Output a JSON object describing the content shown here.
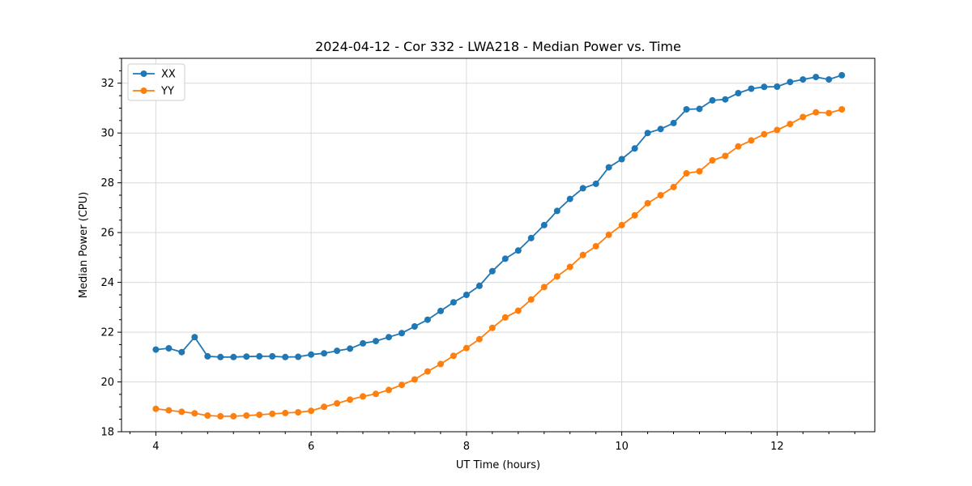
{
  "figure": {
    "background": "#ffffff"
  },
  "chart_data": {
    "type": "line",
    "title": "2024-04-12 - Cor 332 - LWA218 - Median Power vs. Time",
    "xlabel": "UT Time (hours)",
    "ylabel": "Median Power (CPU)",
    "xlim": [
      3.558,
      13.258
    ],
    "ylim": [
      18,
      33
    ],
    "x_ticks": [
      4,
      6,
      8,
      10,
      12
    ],
    "y_ticks": [
      18,
      20,
      22,
      24,
      26,
      28,
      30,
      32
    ],
    "x_minor_step": 0.33333,
    "y_minor_step": 0.5,
    "grid": "major",
    "grid_color": "#d9d9d9",
    "legend_position": "upper-left",
    "x": [
      4.0,
      4.167,
      4.333,
      4.5,
      4.667,
      4.833,
      5.0,
      5.167,
      5.333,
      5.5,
      5.667,
      5.833,
      6.0,
      6.167,
      6.333,
      6.5,
      6.667,
      6.833,
      7.0,
      7.167,
      7.333,
      7.5,
      7.667,
      7.833,
      8.0,
      8.167,
      8.333,
      8.5,
      8.667,
      8.833,
      9.0,
      9.167,
      9.333,
      9.5,
      9.667,
      9.833,
      10.0,
      10.167,
      10.333,
      10.5,
      10.667,
      10.833,
      11.0,
      11.167,
      11.333,
      11.5,
      11.667,
      11.833,
      12.0,
      12.167,
      12.333,
      12.5,
      12.667,
      12.833
    ],
    "series": [
      {
        "name": "XX",
        "color": "#1f77b4",
        "marker": "circle",
        "values": [
          21.3,
          21.35,
          21.2,
          21.8,
          21.03,
          21.0,
          21.0,
          21.02,
          21.03,
          21.03,
          21.0,
          21.01,
          21.1,
          21.15,
          21.25,
          21.34,
          21.55,
          21.64,
          21.8,
          21.96,
          22.23,
          22.5,
          22.85,
          23.2,
          23.5,
          23.86,
          24.45,
          24.95,
          25.28,
          25.78,
          26.3,
          26.87,
          27.35,
          27.78,
          27.96,
          28.62,
          28.95,
          29.38,
          30.0,
          30.16,
          30.4,
          30.95,
          30.97,
          31.31,
          31.35,
          31.6,
          31.78,
          31.85,
          31.86,
          32.05,
          32.15,
          32.25,
          32.15,
          32.32
        ]
      },
      {
        "name": "YY",
        "color": "#ff7f0e",
        "marker": "circle",
        "values": [
          18.92,
          18.86,
          18.8,
          18.74,
          18.65,
          18.62,
          18.62,
          18.65,
          18.68,
          18.72,
          18.75,
          18.78,
          18.84,
          19.0,
          19.14,
          19.29,
          19.42,
          19.52,
          19.68,
          19.88,
          20.1,
          20.42,
          20.72,
          21.05,
          21.36,
          21.72,
          22.17,
          22.59,
          22.86,
          23.31,
          23.81,
          24.24,
          24.62,
          25.1,
          25.45,
          25.91,
          26.3,
          26.69,
          27.18,
          27.5,
          27.83,
          28.38,
          28.46,
          28.9,
          29.08,
          29.46,
          29.7,
          29.95,
          30.12,
          30.36,
          30.64,
          30.83,
          30.8,
          30.95
        ]
      }
    ]
  }
}
